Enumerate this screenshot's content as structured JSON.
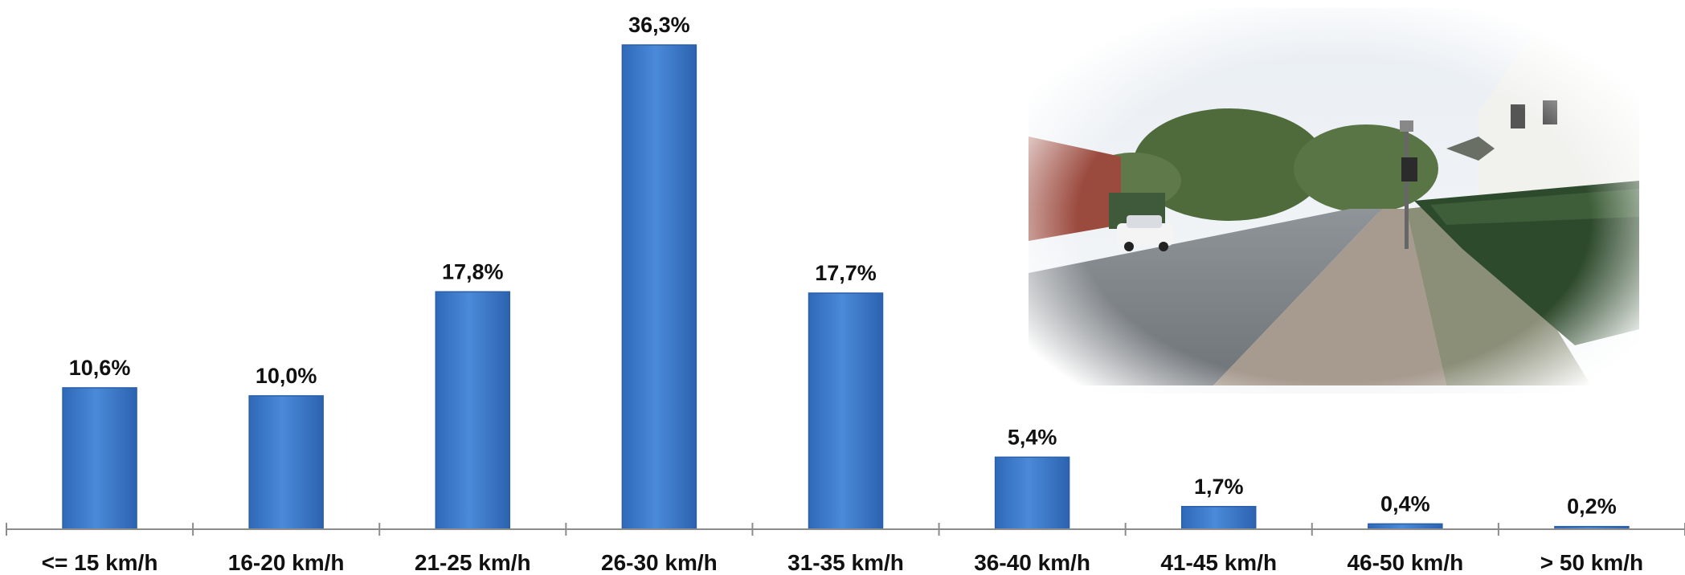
{
  "chart_data": {
    "type": "bar",
    "categories": [
      "<= 15 km/h",
      "16-20 km/h",
      "21-25 km/h",
      "26-30 km/h",
      "31-35 km/h",
      "36-40 km/h",
      "41-45 km/h",
      "46-50 km/h",
      "> 50 km/h"
    ],
    "values": [
      10.6,
      10.0,
      17.8,
      36.3,
      17.7,
      5.4,
      1.7,
      0.4,
      0.2
    ],
    "value_labels": [
      "10,6%",
      "10,0%",
      "17,8%",
      "36,3%",
      "17,7%",
      "5,4%",
      "1,7%",
      "0,4%",
      "0,2%"
    ],
    "title": "",
    "xlabel": "",
    "ylabel": "",
    "ylim": [
      0,
      36.3
    ],
    "grid": false,
    "legend": "none",
    "colors": {
      "bar": "#3f7fd1",
      "bar_dark": "#2a5fa8",
      "axis": "#8c8c8c"
    }
  },
  "photo": {
    "icon": "street-photo-illustration"
  }
}
